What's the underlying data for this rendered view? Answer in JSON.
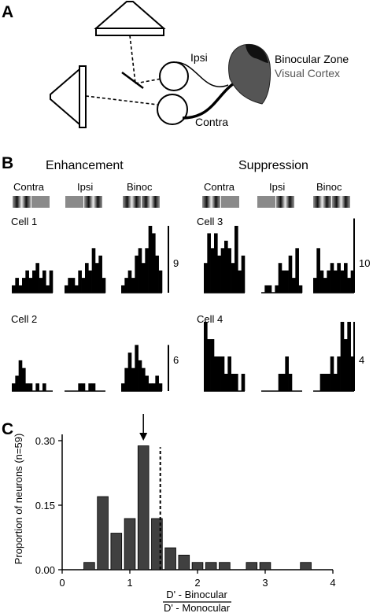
{
  "panels": {
    "a": {
      "letter": "A",
      "ipsi_label": "Ipsi",
      "contra_label": "Contra",
      "zone_label": "Binocular Zone",
      "cortex_label": "Visual Cortex",
      "cortex_color": "#555555"
    },
    "b": {
      "letter": "B",
      "enhancement_title": "Enhancement",
      "suppression_title": "Suppression",
      "condition_labels": [
        "Contra",
        "Ipsi",
        "Binoc",
        "Contra",
        "Ipsi",
        "Binoc"
      ],
      "cells": [
        {
          "label": "Cell 1",
          "scale": "9",
          "histograms": [
            [
              1,
              2,
              1,
              2,
              3,
              2,
              3,
              4,
              2,
              3,
              1,
              3
            ],
            [
              1,
              2,
              2,
              1,
              3,
              2,
              4,
              3,
              6,
              4,
              5,
              2
            ],
            [
              1,
              2,
              3,
              2,
              5,
              6,
              4,
              6,
              9,
              8,
              5,
              3
            ]
          ]
        },
        {
          "label": "Cell 2",
          "scale": "6",
          "histograms": [
            [
              1,
              2,
              4,
              3,
              1,
              1,
              0,
              1,
              0,
              1,
              0,
              0
            ],
            [
              0,
              0,
              0,
              0,
              1,
              1,
              0,
              1,
              1,
              0,
              0,
              0
            ],
            [
              1,
              3,
              5,
              3,
              6,
              4,
              3,
              2,
              1,
              1,
              2,
              1
            ]
          ]
        },
        {
          "label": "Cell 3",
          "scale": "10",
          "histograms": [
            [
              4,
              8,
              6,
              8,
              5,
              6,
              7,
              6,
              4,
              9,
              3,
              5
            ],
            [
              0,
              1,
              1,
              0,
              1,
              4,
              3,
              3,
              5,
              2,
              6,
              1
            ],
            [
              2,
              6,
              3,
              2,
              3,
              4,
              3,
              4,
              3,
              4,
              2,
              3
            ]
          ]
        },
        {
          "label": "Cell 4",
          "scale": "4",
          "histograms": [
            [
              4,
              3,
              3,
              2,
              2,
              2,
              1,
              2,
              1,
              1,
              0,
              1
            ],
            [
              0,
              0,
              0,
              0,
              0,
              1,
              1,
              2,
              1,
              0,
              0,
              0
            ],
            [
              0,
              0,
              1,
              1,
              1,
              2,
              1,
              2,
              4,
              3,
              4,
              2
            ]
          ]
        }
      ],
      "scale_bars": [
        {
          "label": "9",
          "count": 9
        },
        {
          "label": "6",
          "count": 6
        },
        {
          "label": "10",
          "count": 10
        },
        {
          "label": "4",
          "count": 4
        }
      ]
    },
    "c": {
      "letter": "C"
    }
  },
  "chart_data": {
    "type": "bar",
    "ylabel": "Proportion of neurons (n=59)",
    "xlabel_numerator": "D' - Binocular",
    "xlabel_denominator": "D' - Monocular",
    "x_ticks": [
      "0",
      "1",
      "2",
      "3",
      "4"
    ],
    "y_ticks": [
      "0.00",
      "0.15",
      "0.30"
    ],
    "xlim": [
      0,
      4
    ],
    "ylim": [
      0,
      0.32
    ],
    "bin_width": 0.2,
    "bin_centers": [
      0.4,
      0.6,
      0.8,
      1.0,
      1.2,
      1.4,
      1.6,
      1.8,
      2.0,
      2.2,
      2.4,
      2.6,
      2.8,
      3.0,
      3.2,
      3.4,
      3.6
    ],
    "values": [
      0.017,
      0.17,
      0.085,
      0.119,
      0.288,
      0.119,
      0.051,
      0.034,
      0.017,
      0.017,
      0.017,
      0,
      0.017,
      0.017,
      0,
      0,
      0.017
    ],
    "bar_color": "#404040",
    "dashed_line_x": 1.45,
    "arrow_x": 1.2
  }
}
